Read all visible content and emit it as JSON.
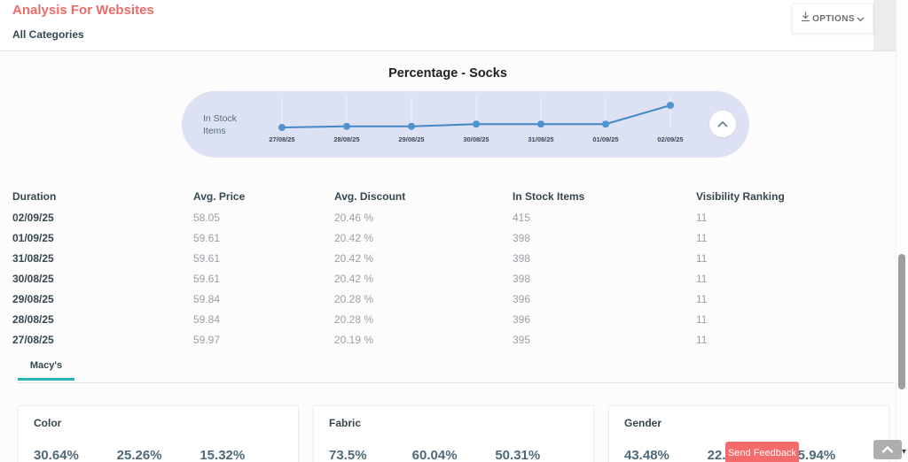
{
  "header": {
    "title": "Analysis For Websites",
    "subtitle": "All Categories",
    "options_label": "OPTIONS"
  },
  "chart": {
    "title": "Percentage - Socks",
    "series_label": "In Stock Items"
  },
  "chart_data": {
    "type": "line",
    "title": "Percentage - Socks",
    "series": [
      {
        "name": "In Stock Items",
        "values": [
          395,
          396,
          396,
          398,
          398,
          398,
          415
        ]
      }
    ],
    "x": [
      "27/08/25",
      "28/08/25",
      "29/08/25",
      "30/08/25",
      "31/08/25",
      "01/09/25",
      "02/09/25"
    ],
    "ylim": [
      390,
      420
    ],
    "grid": false,
    "legend_position": "left",
    "line_color": "#4288c9",
    "point_color": "#4f93cf"
  },
  "table": {
    "columns": [
      "Duration",
      "Avg. Price",
      "Avg. Discount",
      "In Stock Items",
      "Visibility Ranking"
    ],
    "rows": [
      [
        "02/09/25",
        "58.05",
        "20.46 %",
        "415",
        "11"
      ],
      [
        "01/09/25",
        "59.61",
        "20.42 %",
        "398",
        "11"
      ],
      [
        "31/08/25",
        "59.61",
        "20.42 %",
        "398",
        "11"
      ],
      [
        "30/08/25",
        "59.61",
        "20.42 %",
        "398",
        "11"
      ],
      [
        "29/08/25",
        "59.84",
        "20.28 %",
        "396",
        "11"
      ],
      [
        "28/08/25",
        "59.84",
        "20.28 %",
        "396",
        "11"
      ],
      [
        "27/08/25",
        "59.97",
        "20.19 %",
        "395",
        "11"
      ]
    ]
  },
  "tabs": {
    "active": "Macy's"
  },
  "cards": [
    {
      "title": "Color",
      "stats": [
        {
          "value": "30.64%"
        },
        {
          "value": "25.26%"
        },
        {
          "value": "15.32%"
        }
      ]
    },
    {
      "title": "Fabric",
      "stats": [
        {
          "value": "73.5%"
        },
        {
          "value": "60.04%"
        },
        {
          "value": "50.31%"
        }
      ]
    },
    {
      "title": "Gender",
      "stats": [
        {
          "value": "43.48%"
        },
        {
          "value": "22.3"
        },
        {
          "value": "15.94%"
        }
      ]
    }
  ],
  "feedback_button_label": "Send Feedback",
  "colors": {
    "accent_red": "#f16a6a",
    "accent_teal": "#2bb4b4",
    "pill_bg": "#dce1f3",
    "text_dark": "#37474f",
    "text_muted": "#9aa0a6",
    "feedback_bg": "#f56b6b"
  }
}
